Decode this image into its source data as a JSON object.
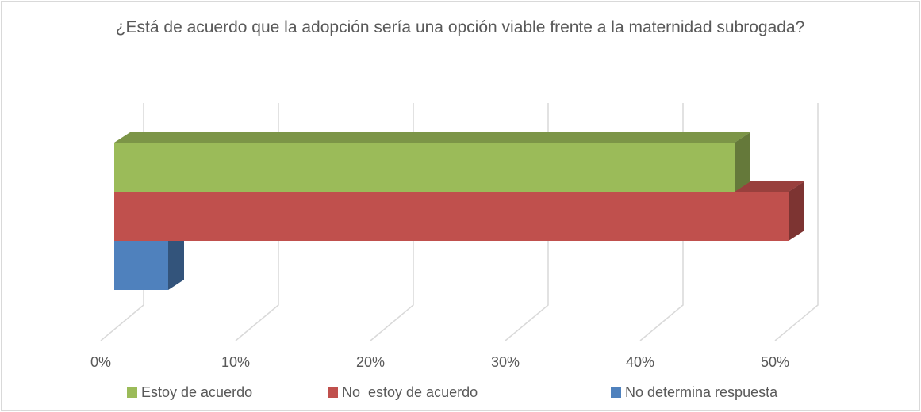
{
  "chart_data": {
    "type": "bar3d_horizontal",
    "title": "¿Está de acuerdo que la adopción sería una opción viable frente a la maternidad subrogada?",
    "categories": [
      null
    ],
    "series": [
      {
        "name": "Estoy de acuerdo",
        "color": "#9bbb59",
        "values": [
          46
        ]
      },
      {
        "name": "No  estoy de acuerdo",
        "color": "#c0504d",
        "values": [
          50
        ]
      },
      {
        "name": "No determina respuesta",
        "color": "#4f81bd",
        "values": [
          4
        ]
      }
    ],
    "xlim": [
      0,
      50
    ],
    "xticks": [
      {
        "value": 0,
        "label": "0%"
      },
      {
        "value": 10,
        "label": "10%"
      },
      {
        "value": 20,
        "label": "20%"
      },
      {
        "value": 30,
        "label": "30%"
      },
      {
        "value": 40,
        "label": "40%"
      },
      {
        "value": 50,
        "label": "50%"
      }
    ],
    "grid": true,
    "legend": "bottom"
  }
}
